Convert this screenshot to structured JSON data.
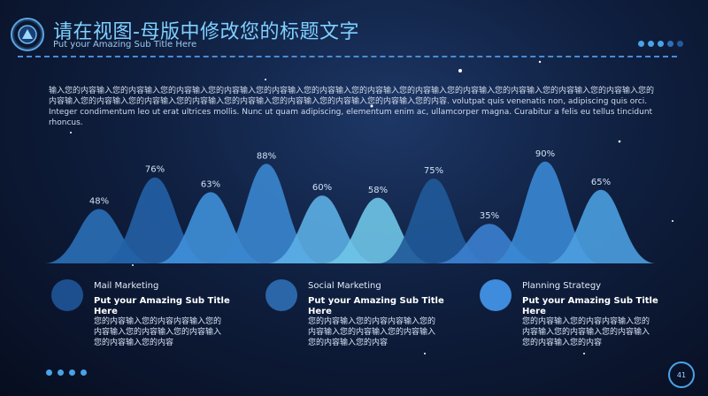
{
  "header": {
    "title": "请在视图-母版中修改您的标题文字",
    "subtitle": "Put your Amazing Sub Title Here"
  },
  "paragraph": "输入您的内容输入您的内容输入您的内容输入您的内容输入您的内容输入您的内容输入您的内容输入您的内容输入您的内容输入您的内容输入您的内容输入您的内容输入您的内容输入您的内容输入您的内容输入您的内容输入您的内容输入您的内容输入您的内容输入您的内容输入您的内容. volutpat quis venenatis non, adipiscing quis orci. Integer condimentum leo ut erat ultrices mollis. Nunc ut quam adipiscing, elementum enim ac, ullamcorper magna. Curabitur a felis eu tellus tincidunt rhoncus.",
  "chart_data": {
    "type": "area",
    "values": [
      48,
      76,
      63,
      88,
      60,
      58,
      75,
      35,
      90,
      65
    ],
    "labels": [
      "48%",
      "76%",
      "63%",
      "88%",
      "60%",
      "58%",
      "75%",
      "35%",
      "90%",
      "65%"
    ],
    "colors": [
      "#2a6fb5",
      "#2361a6",
      "#3f8fd9",
      "#3a86cf",
      "#5cafe6",
      "#6fc5e8",
      "#1f5a99",
      "#3c7fcf",
      "#3a88d4",
      "#4b9ee0"
    ]
  },
  "features": [
    {
      "label": "Mail Marketing",
      "subtitle": "Put your Amazing Sub Title Here",
      "body": "您的内容输入您的内容内容输入您的内容输入您的内容输入您的内容输入您的内容输入您的内容",
      "color": "#1d4f8e"
    },
    {
      "label": "Social Marketing",
      "subtitle": "Put your Amazing Sub Title Here",
      "body": "您的内容输入您的内容内容输入您的内容输入您的内容输入您的内容输入您的内容输入您的内容",
      "color": "#2b66a8"
    },
    {
      "label": "Planning Strategy",
      "subtitle": "Put your Amazing Sub Title Here",
      "body": "您的内容输入您的内容内容输入您的内容输入您的内容输入您的内容输入您的内容输入您的内容",
      "color": "#3f8bdc"
    }
  ],
  "page_number": "41"
}
